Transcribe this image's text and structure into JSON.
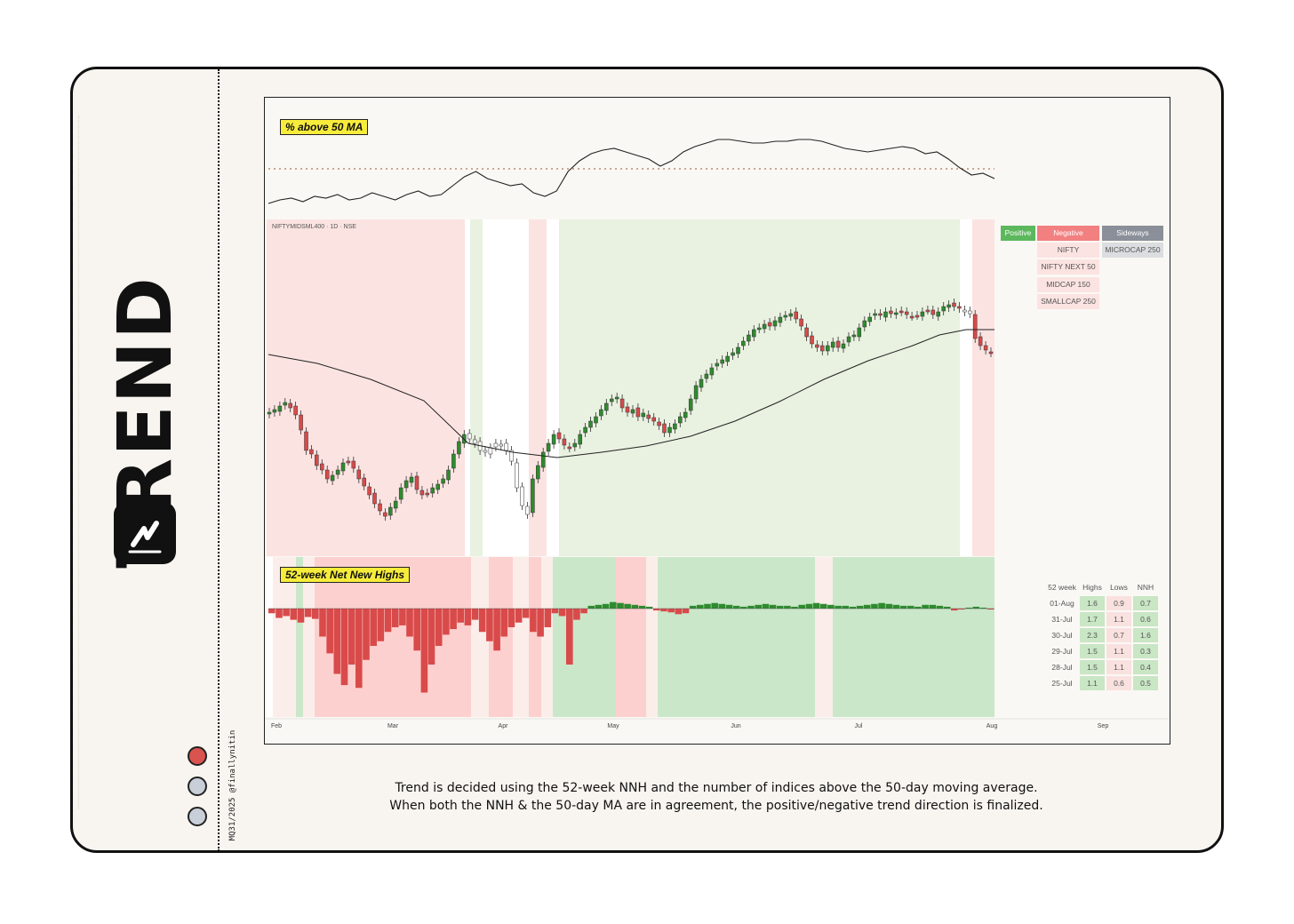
{
  "brand": {
    "word": "TREND",
    "credit": "MQ31/2025 @finallynitin"
  },
  "caption": {
    "line1": "Trend is decided using the 52-week NNH and the number of indices above the 50-day moving average.",
    "line2": "When both the NNH & the 50-day MA are in agreement, the positive/negative trend direction is finalized."
  },
  "panels": {
    "breadth_label": "% above 50 MA",
    "price_label": "NIFTYMIDSML400 · 1D · NSE",
    "nnh_label": "52-week Net New Highs"
  },
  "legend": {
    "headers": [
      "Positive",
      "Negative",
      "Sideways"
    ],
    "negative_items": [
      "NIFTY",
      "NIFTY NEXT 50",
      "MIDCAP 150",
      "SMALLCAP 250"
    ],
    "sideways_items": [
      "MICROCAP 250"
    ]
  },
  "nnh_table": {
    "headers": [
      "52 week",
      "Highs",
      "Lows",
      "NNH"
    ],
    "rows": [
      [
        "01-Aug",
        "1.6",
        "0.9",
        "0.7"
      ],
      [
        "31-Jul",
        "1.7",
        "1.1",
        "0.6"
      ],
      [
        "30-Jul",
        "2.3",
        "0.7",
        "1.6"
      ],
      [
        "29-Jul",
        "1.5",
        "1.1",
        "0.3"
      ],
      [
        "28-Jul",
        "1.5",
        "1.1",
        "0.4"
      ],
      [
        "25-Jul",
        "1.1",
        "0.6",
        "0.5"
      ]
    ]
  },
  "colors": {
    "up": "#2e8b2e",
    "down": "#d94a4a",
    "neg_zone": "#fbe3e1",
    "pos_zone": "#e9f1e0",
    "nnh_neg_zone": "#fcd0cf",
    "nnh_pos_zone": "#cbe7c9",
    "positive_tag": "#5cb85c",
    "negative_tag": "#f28080",
    "sideways_tag": "#8a8f99"
  },
  "chart_data": {
    "type": "line",
    "x_axis": {
      "ticks": [
        "Feb",
        "Mar",
        "Apr",
        "May",
        "Jun",
        "Jul",
        "Aug",
        "Sep"
      ]
    },
    "breadth_percent_above_50ma": [
      30,
      32,
      33,
      31,
      34,
      33,
      35,
      32,
      33,
      36,
      34,
      32,
      35,
      37,
      34,
      35,
      40,
      45,
      48,
      44,
      42,
      40,
      41,
      36,
      34,
      37,
      48,
      54,
      58,
      60,
      61,
      59,
      57,
      55,
      51,
      54,
      59,
      62,
      64,
      66,
      66,
      65,
      64,
      64,
      65,
      65,
      66,
      66,
      65,
      63,
      61,
      60,
      59,
      60,
      61,
      62,
      61,
      58,
      59,
      55,
      50,
      46,
      47,
      44
    ],
    "trend_zones": [
      {
        "from": "Feb",
        "to": "late Mar",
        "trend": "negative"
      },
      {
        "from": "late Mar",
        "to": "mid Apr",
        "trend": "sideways"
      },
      {
        "from": "mid Apr",
        "to": "late Jul",
        "trend": "positive"
      },
      {
        "from": "late Jul",
        "to": "Aug",
        "trend": "negative"
      }
    ],
    "price_series": "NIFTYMIDSML400 daily candles with 50-day moving average",
    "nnh_series": "52-week net new highs histogram",
    "bar_values": [
      -5,
      -10,
      -8,
      -12,
      -15,
      -9,
      -11,
      -30,
      -48,
      -70,
      -82,
      -60,
      -85,
      -55,
      -40,
      -35,
      -25,
      -20,
      -18,
      -30,
      -45,
      -90,
      -60,
      -40,
      -28,
      -22,
      -15,
      -18,
      -12,
      -25,
      -35,
      -45,
      -30,
      -20,
      -15,
      -10,
      -25,
      -30,
      -20,
      -5,
      -8,
      -60,
      -12,
      -5,
      3,
      4,
      5,
      7,
      6,
      5,
      4,
      3,
      2,
      -2,
      -3,
      -4,
      -6,
      -5,
      3,
      4,
      5,
      6,
      5,
      4,
      3,
      2,
      3,
      4,
      5,
      4,
      3,
      3,
      2,
      4,
      5,
      6,
      5,
      4,
      3,
      3,
      2,
      3,
      4,
      5,
      6,
      5,
      4,
      3,
      3,
      2,
      4,
      4,
      3,
      2,
      -2,
      -1,
      1,
      2,
      1,
      -1
    ]
  }
}
